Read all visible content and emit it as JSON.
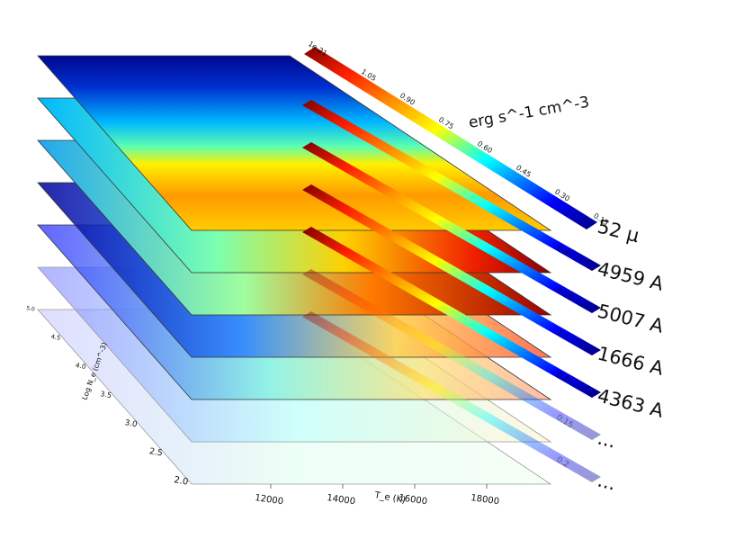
{
  "chart_data": {
    "type": "heatmap",
    "title": "",
    "colormap": "jet",
    "xlabel": "T_e (K)",
    "ylabel": "Log N_e (cm^-3)",
    "x_ticks": [
      "12000",
      "14000",
      "16000",
      "18000"
    ],
    "y_ticks": [
      "2.0",
      "2.5",
      "3.0",
      "3.5",
      "4.0",
      "4.5",
      "5.0"
    ],
    "colorbar_unit": "erg s^-1 cm^-3",
    "colorbar_scale": "1e-21",
    "colorbar_ticks": [
      "0.15",
      "0.30",
      "0.45",
      "0.60",
      "0.75",
      "0.90",
      "1.05"
    ],
    "layers": [
      {
        "label": "52 µ",
        "bar_labels": [
          "0.15",
          "0.30",
          "0.45",
          "0.60",
          "0.75",
          "0.90",
          "1.05"
        ]
      },
      {
        "label": "4959 A",
        "bar_labels": [
          "0.4"
        ]
      },
      {
        "label": "5007 A",
        "bar_labels": [
          "0.15"
        ]
      },
      {
        "label": "1666 A",
        "bar_labels": [
          "1"
        ]
      },
      {
        "label": "4363 A",
        "bar_labels": [
          "0.5"
        ]
      },
      {
        "label": "...",
        "bar_labels": [
          "0.15"
        ]
      },
      {
        "label": "...",
        "bar_labels": [
          "0.2"
        ]
      }
    ]
  }
}
